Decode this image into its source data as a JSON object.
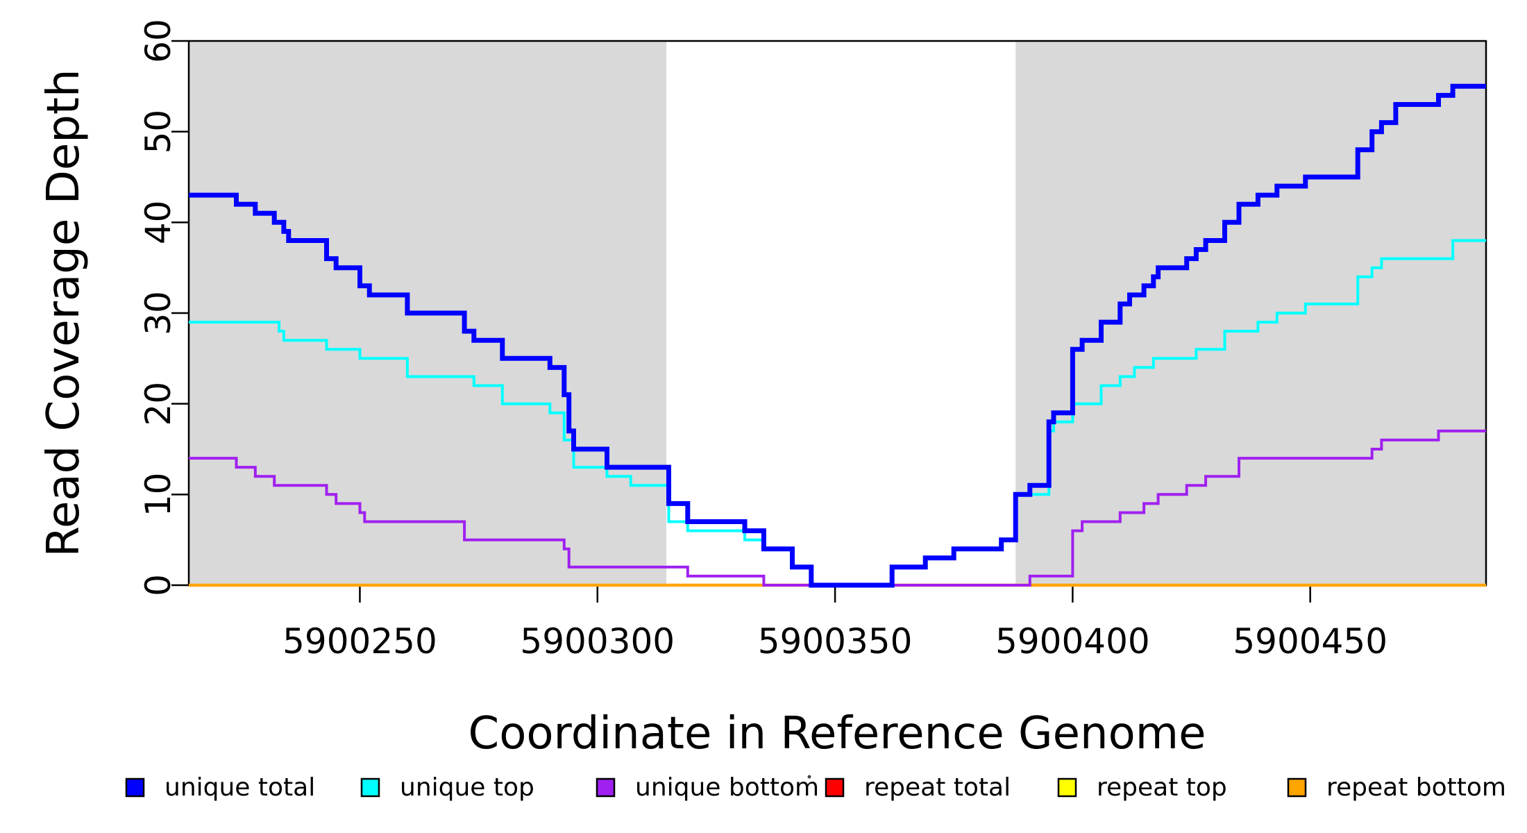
{
  "chart_data": {
    "type": "line",
    "subtype": "step",
    "title": "",
    "xlabel": "Coordinate in Reference Genome",
    "ylabel": "Read Coverage Depth",
    "xlim": [
      5900214,
      5900487
    ],
    "ylim": [
      0,
      60
    ],
    "xticks": [
      5900250,
      5900300,
      5900350,
      5900400,
      5900450
    ],
    "yticks": [
      0,
      10,
      20,
      30,
      40,
      50,
      60
    ],
    "grid": false,
    "plot_background": "#ffffff",
    "box_color": "#000000",
    "shaded_regions": [
      {
        "x0": 5900214,
        "x1": 5900314.5,
        "color": "#d9d9d9"
      },
      {
        "x0": 5900388,
        "x1": 5900487,
        "color": "#d9d9d9"
      }
    ],
    "legend_position": "bottom",
    "series": [
      {
        "name": "unique total",
        "color": "#0000ff",
        "width": 7,
        "z": 6,
        "steps": [
          [
            5900214,
            43
          ],
          [
            5900224,
            42
          ],
          [
            5900228,
            41
          ],
          [
            5900232,
            40
          ],
          [
            5900234,
            39
          ],
          [
            5900235,
            38
          ],
          [
            5900243,
            36
          ],
          [
            5900245,
            35
          ],
          [
            5900250,
            33
          ],
          [
            5900252,
            32
          ],
          [
            5900260,
            30
          ],
          [
            5900272,
            28
          ],
          [
            5900274,
            27
          ],
          [
            5900280,
            25
          ],
          [
            5900290,
            24
          ],
          [
            5900293,
            21
          ],
          [
            5900294,
            17
          ],
          [
            5900295,
            15
          ],
          [
            5900302,
            13
          ],
          [
            5900315,
            9
          ],
          [
            5900319,
            7
          ],
          [
            5900331,
            6
          ],
          [
            5900335,
            4
          ],
          [
            5900341,
            2
          ],
          [
            5900345,
            0
          ],
          [
            5900362,
            2
          ],
          [
            5900369,
            3
          ],
          [
            5900375,
            4
          ],
          [
            5900385,
            5
          ],
          [
            5900388,
            10
          ],
          [
            5900391,
            11
          ],
          [
            5900395,
            18
          ],
          [
            5900396,
            19
          ],
          [
            5900400,
            26
          ],
          [
            5900402,
            27
          ],
          [
            5900406,
            29
          ],
          [
            5900410,
            31
          ],
          [
            5900412,
            32
          ],
          [
            5900415,
            33
          ],
          [
            5900417,
            34
          ],
          [
            5900418,
            35
          ],
          [
            5900424,
            36
          ],
          [
            5900426,
            37
          ],
          [
            5900428,
            38
          ],
          [
            5900432,
            40
          ],
          [
            5900435,
            42
          ],
          [
            5900439,
            43
          ],
          [
            5900443,
            44
          ],
          [
            5900449,
            45
          ],
          [
            5900460,
            48
          ],
          [
            5900463,
            50
          ],
          [
            5900465,
            51
          ],
          [
            5900468,
            53
          ],
          [
            5900477,
            54
          ],
          [
            5900480,
            55
          ],
          [
            5900487,
            55
          ]
        ]
      },
      {
        "name": "unique top",
        "color": "#00ffff",
        "width": 4,
        "z": 5,
        "steps": [
          [
            5900214,
            29
          ],
          [
            5900233,
            28
          ],
          [
            5900234,
            27
          ],
          [
            5900243,
            26
          ],
          [
            5900250,
            25
          ],
          [
            5900260,
            23
          ],
          [
            5900274,
            22
          ],
          [
            5900280,
            20
          ],
          [
            5900290,
            19
          ],
          [
            5900293,
            16
          ],
          [
            5900295,
            13
          ],
          [
            5900302,
            12
          ],
          [
            5900307,
            11
          ],
          [
            5900315,
            7
          ],
          [
            5900319,
            6
          ],
          [
            5900331,
            5
          ],
          [
            5900335,
            4
          ],
          [
            5900341,
            2
          ],
          [
            5900345,
            0
          ],
          [
            5900362,
            2
          ],
          [
            5900369,
            3
          ],
          [
            5900375,
            4
          ],
          [
            5900385,
            5
          ],
          [
            5900388,
            10
          ],
          [
            5900395,
            17
          ],
          [
            5900396,
            18
          ],
          [
            5900400,
            20
          ],
          [
            5900406,
            22
          ],
          [
            5900410,
            23
          ],
          [
            5900413,
            24
          ],
          [
            5900417,
            25
          ],
          [
            5900426,
            26
          ],
          [
            5900432,
            28
          ],
          [
            5900439,
            29
          ],
          [
            5900443,
            30
          ],
          [
            5900449,
            31
          ],
          [
            5900460,
            34
          ],
          [
            5900463,
            35
          ],
          [
            5900465,
            36
          ],
          [
            5900480,
            38
          ],
          [
            5900487,
            38
          ]
        ]
      },
      {
        "name": "unique bottom",
        "color": "#a020f0",
        "width": 4,
        "z": 4,
        "steps": [
          [
            5900214,
            14
          ],
          [
            5900224,
            13
          ],
          [
            5900228,
            12
          ],
          [
            5900232,
            11
          ],
          [
            5900243,
            10
          ],
          [
            5900245,
            9
          ],
          [
            5900250,
            8
          ],
          [
            5900251,
            7
          ],
          [
            5900272,
            5
          ],
          [
            5900293,
            4
          ],
          [
            5900294,
            2
          ],
          [
            5900319,
            1
          ],
          [
            5900335,
            0
          ],
          [
            5900391,
            1
          ],
          [
            5900400,
            6
          ],
          [
            5900402,
            7
          ],
          [
            5900410,
            8
          ],
          [
            5900415,
            9
          ],
          [
            5900418,
            10
          ],
          [
            5900424,
            11
          ],
          [
            5900428,
            12
          ],
          [
            5900435,
            14
          ],
          [
            5900463,
            15
          ],
          [
            5900465,
            16
          ],
          [
            5900477,
            17
          ],
          [
            5900487,
            17
          ]
        ]
      },
      {
        "name": "repeat total",
        "color": "#ff0000",
        "width": 3,
        "z": 1,
        "steps": [
          [
            5900214,
            0
          ],
          [
            5900487,
            0
          ]
        ]
      },
      {
        "name": "repeat top",
        "color": "#ffff00",
        "width": 3,
        "z": 2,
        "steps": [
          [
            5900214,
            0
          ],
          [
            5900487,
            0
          ]
        ]
      },
      {
        "name": "repeat bottom",
        "color": "#ffa500",
        "width": 4.5,
        "z": 3,
        "steps": [
          [
            5900214,
            0
          ],
          [
            5900487,
            0
          ]
        ]
      }
    ]
  }
}
